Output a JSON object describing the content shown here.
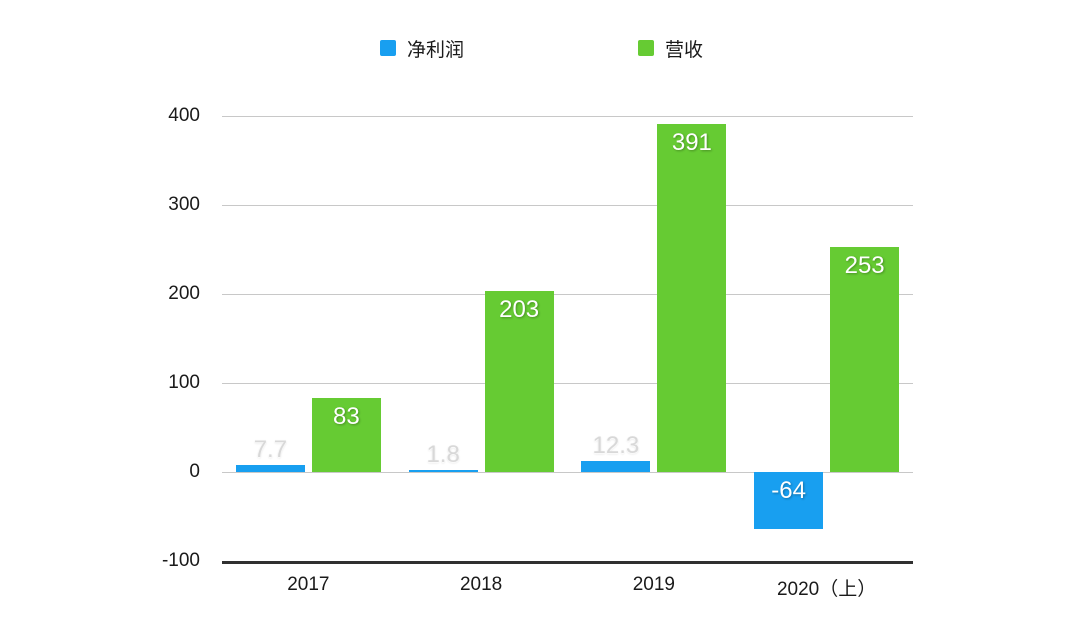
{
  "chart_data": {
    "type": "bar",
    "categories": [
      "2017",
      "2018",
      "2019",
      "2020（上）"
    ],
    "series": [
      {
        "id": "net-profit",
        "name": "净利润",
        "color": "#189FF0",
        "values": [
          7.7,
          1.8,
          12.3,
          -64
        ],
        "labels": [
          "7.7",
          "1.8",
          "12.3",
          "-64"
        ]
      },
      {
        "id": "revenue",
        "name": "营收",
        "color": "#66CB33",
        "values": [
          83,
          203,
          391,
          253
        ],
        "labels": [
          "83",
          "203",
          "391",
          "253"
        ]
      }
    ],
    "y_axis": {
      "min": -100,
      "max": 400,
      "ticks": [
        400,
        300,
        200,
        100,
        0,
        -100
      ]
    },
    "grid": true,
    "legend_position": "top"
  },
  "colors": {
    "net_profit_bar": "#189FF0",
    "revenue_bar": "#66CB33",
    "gridline": "#C8C8C8",
    "axis_line": "#303030",
    "tick_text": "#1A1A1A",
    "label_inside": "#FFFFFF",
    "label_above_bar": "#D8D8D8",
    "background": "#FFFFFF"
  }
}
